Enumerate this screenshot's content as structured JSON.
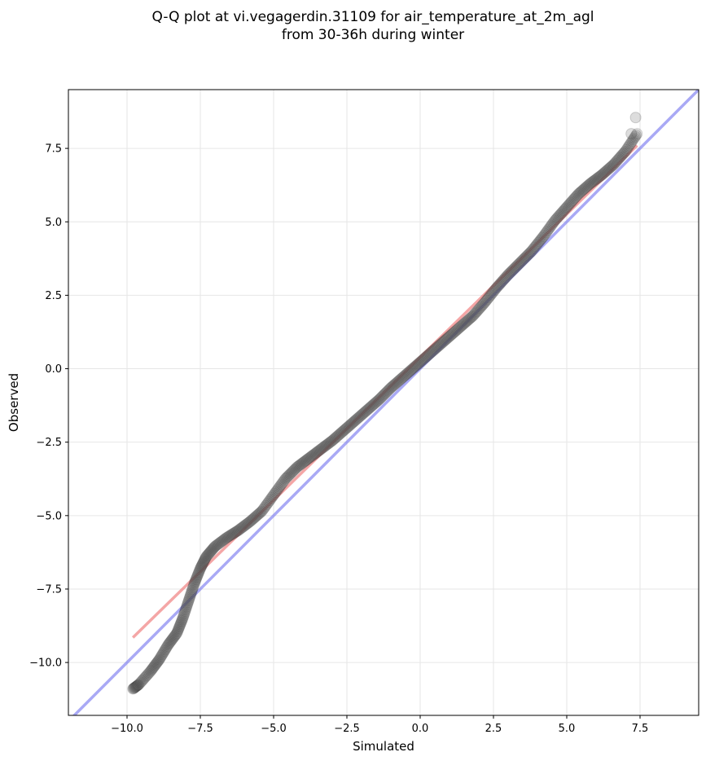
{
  "chart_data": {
    "type": "scatter",
    "title_line1": "Q-Q plot at vi.vegagerdin.31109 for air_temperature_at_2m_agl",
    "title_line2": "from 30-36h during winter",
    "xlabel": "Simulated",
    "ylabel": "Observed",
    "xlim": [
      -12.0,
      9.5
    ],
    "ylim": [
      -11.8,
      9.5
    ],
    "xticks": [
      -10.0,
      -7.5,
      -5.0,
      -2.5,
      0.0,
      2.5,
      5.0,
      7.5
    ],
    "xtick_labels": [
      "−10.0",
      "−7.5",
      "−5.0",
      "−2.5",
      "0.0",
      "2.5",
      "5.0",
      "7.5"
    ],
    "yticks": [
      -10.0,
      -7.5,
      -5.0,
      -2.5,
      0.0,
      2.5,
      5.0,
      7.5
    ],
    "ytick_labels": [
      "−10.0",
      "−7.5",
      "−5.0",
      "−2.5",
      "0.0",
      "2.5",
      "5.0",
      "7.5"
    ],
    "grid": true,
    "colors": {
      "points": "#555555",
      "fit_line": "#f08080",
      "identity_line": "#7b7bf0"
    },
    "identity_line": {
      "x": [
        -12.0,
        9.5
      ],
      "y": [
        -12.0,
        9.5
      ]
    },
    "fit_line": {
      "x": [
        -9.8,
        7.4
      ],
      "y": [
        -9.15,
        7.6
      ]
    },
    "quantile_curve": {
      "x": [
        -9.8,
        -9.6,
        -9.2,
        -8.9,
        -8.6,
        -8.3,
        -8.1,
        -7.9,
        -7.7,
        -7.5,
        -7.3,
        -7.0,
        -6.6,
        -6.2,
        -5.8,
        -5.4,
        -5.0,
        -4.6,
        -4.2,
        -3.8,
        -3.4,
        -3.0,
        -2.6,
        -2.2,
        -1.8,
        -1.4,
        -1.0,
        -0.6,
        -0.2,
        0.2,
        0.6,
        1.0,
        1.4,
        1.8,
        2.2,
        2.6,
        3.0,
        3.4,
        3.8,
        4.2,
        4.6,
        5.0,
        5.4,
        5.8,
        6.2,
        6.6,
        7.0,
        7.4
      ],
      "y": [
        -10.9,
        -10.75,
        -10.3,
        -9.9,
        -9.4,
        -9.0,
        -8.5,
        -7.9,
        -7.3,
        -6.8,
        -6.4,
        -6.05,
        -5.75,
        -5.5,
        -5.2,
        -4.85,
        -4.3,
        -3.75,
        -3.35,
        -3.05,
        -2.75,
        -2.45,
        -2.1,
        -1.75,
        -1.4,
        -1.05,
        -0.65,
        -0.3,
        0.05,
        0.4,
        0.75,
        1.1,
        1.45,
        1.8,
        2.25,
        2.75,
        3.2,
        3.6,
        4.0,
        4.5,
        5.05,
        5.5,
        5.95,
        6.3,
        6.6,
        6.95,
        7.4,
        8.0
      ]
    },
    "outlier_points": {
      "x": [
        7.35,
        7.2
      ],
      "y": [
        8.55,
        8.0
      ]
    }
  }
}
